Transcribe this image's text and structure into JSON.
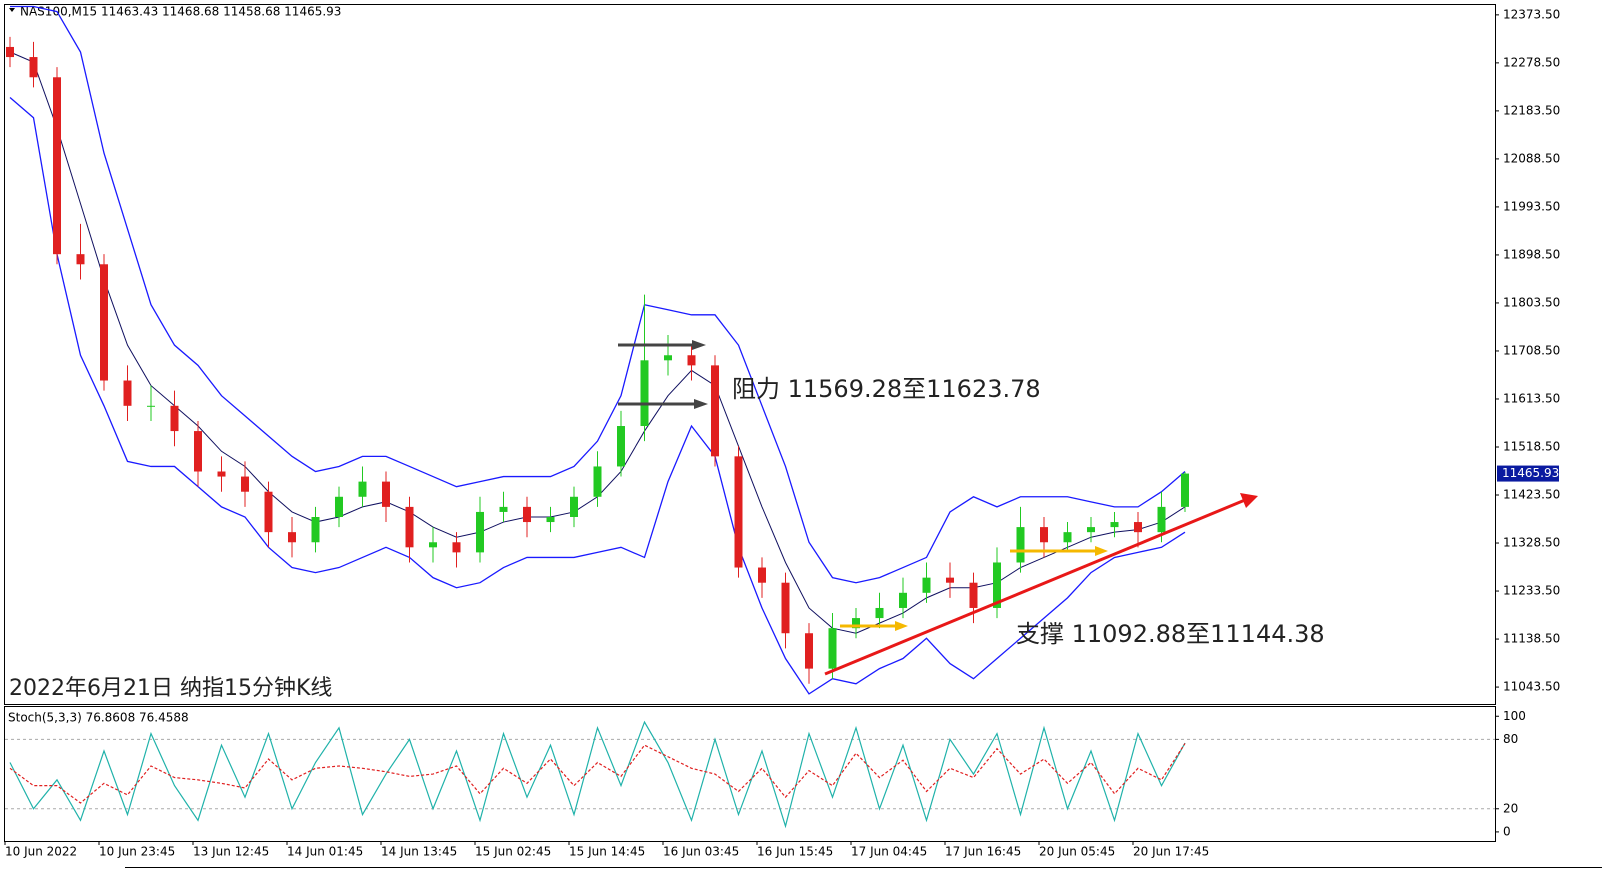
{
  "chart_data": [
    {
      "type": "candlestick",
      "title": "NAS100,M15  11463.43 11468.68 11458.68 11465.93",
      "categories": [
        "10 Jun 2022",
        null,
        null,
        null,
        "10 Jun 23:45",
        null,
        null,
        null,
        "13 Jun 12:45",
        null,
        null,
        null,
        "14 Jun 01:45",
        null,
        null,
        null,
        "14 Jun 13:45",
        null,
        null,
        null,
        "15 Jun 02:45",
        null,
        null,
        null,
        "15 Jun 14:45",
        null,
        null,
        null,
        "16 Jun 03:45",
        null,
        null,
        null,
        "16 Jun 15:45",
        null,
        null,
        null,
        "17 Jun 04:45",
        null,
        null,
        null,
        "17 Jun 16:45",
        null,
        null,
        null,
        "20 Jun 05:45",
        null,
        null,
        null,
        "20 Jun 17:45",
        null,
        null
      ],
      "open": [
        12310,
        12290,
        12250,
        11900,
        11880,
        11650,
        11600,
        11600,
        11550,
        11470,
        11460,
        11430,
        11350,
        11330,
        11380,
        11420,
        11450,
        11400,
        11320,
        11330,
        11310,
        11390,
        11400,
        11370,
        11380,
        11420,
        11480,
        11560,
        11690,
        11700,
        11680,
        11500,
        11280,
        11250,
        11150,
        11080,
        11160,
        11180,
        11200,
        11230,
        11260,
        11250,
        11200,
        11290,
        11360,
        11330,
        11350,
        11360,
        11370,
        11350,
        11400
      ],
      "high": [
        12330,
        12320,
        12270,
        11960,
        11900,
        11680,
        11640,
        11630,
        11570,
        11500,
        11490,
        11450,
        11380,
        11400,
        11440,
        11480,
        11470,
        11420,
        11360,
        11350,
        11420,
        11430,
        11420,
        11400,
        11440,
        11510,
        11590,
        11820,
        11740,
        11720,
        11700,
        11520,
        11300,
        11270,
        11170,
        11190,
        11200,
        11230,
        11260,
        11290,
        11290,
        11270,
        11320,
        11400,
        11380,
        11370,
        11380,
        11390,
        11390,
        11430,
        11469
      ],
      "low": [
        12270,
        12230,
        11880,
        11850,
        11630,
        11570,
        11570,
        11520,
        11440,
        11430,
        11400,
        11320,
        11300,
        11310,
        11360,
        11400,
        11370,
        11290,
        11290,
        11280,
        11290,
        11370,
        11340,
        11350,
        11360,
        11400,
        11460,
        11530,
        11660,
        11650,
        11480,
        11260,
        11220,
        11120,
        11050,
        11060,
        11140,
        11160,
        11180,
        11210,
        11220,
        11170,
        11180,
        11270,
        11300,
        11310,
        11330,
        11340,
        11320,
        11330,
        11390
      ],
      "close": [
        12290,
        12250,
        11900,
        11880,
        11650,
        11600,
        11600,
        11550,
        11470,
        11460,
        11430,
        11350,
        11330,
        11380,
        11420,
        11450,
        11400,
        11320,
        11330,
        11310,
        11390,
        11400,
        11370,
        11380,
        11420,
        11480,
        11560,
        11690,
        11700,
        11680,
        11500,
        11280,
        11250,
        11150,
        11080,
        11160,
        11180,
        11200,
        11230,
        11260,
        11250,
        11200,
        11290,
        11360,
        11330,
        11350,
        11360,
        11370,
        11350,
        11400,
        11465.93
      ],
      "bands": {
        "upper": [
          12390,
          12390,
          12380,
          12300,
          12100,
          11950,
          11800,
          11720,
          11680,
          11620,
          11580,
          11540,
          11500,
          11470,
          11480,
          11500,
          11500,
          11480,
          11460,
          11440,
          11450,
          11460,
          11460,
          11460,
          11480,
          11530,
          11620,
          11800,
          11790,
          11780,
          11780,
          11720,
          11600,
          11480,
          11330,
          11260,
          11250,
          11260,
          11280,
          11300,
          11390,
          11420,
          11400,
          11420,
          11420,
          11420,
          11410,
          11400,
          11400,
          11430,
          11470
        ],
        "middle": [
          12300,
          12280,
          12150,
          12000,
          11850,
          11720,
          11640,
          11600,
          11560,
          11510,
          11480,
          11430,
          11390,
          11370,
          11380,
          11400,
          11410,
          11390,
          11360,
          11340,
          11350,
          11370,
          11380,
          11380,
          11390,
          11420,
          11470,
          11550,
          11620,
          11670,
          11640,
          11520,
          11400,
          11290,
          11200,
          11160,
          11150,
          11170,
          11190,
          11220,
          11240,
          11240,
          11250,
          11280,
          11300,
          11320,
          11340,
          11350,
          11355,
          11370,
          11400
        ],
        "lower": [
          12210,
          12170,
          11900,
          11700,
          11600,
          11490,
          11480,
          11480,
          11440,
          11400,
          11380,
          11320,
          11280,
          11270,
          11280,
          11300,
          11320,
          11300,
          11260,
          11240,
          11250,
          11280,
          11300,
          11300,
          11300,
          11310,
          11320,
          11300,
          11450,
          11560,
          11500,
          11320,
          11200,
          11100,
          11030,
          11060,
          11050,
          11080,
          11100,
          11140,
          11090,
          11060,
          11100,
          11140,
          11180,
          11220,
          11270,
          11300,
          11310,
          11320,
          11350
        ]
      },
      "up_color": "#22c922",
      "down_color": "#e02020",
      "band_color": "#1a1aff",
      "middle_color": "#101060",
      "ylim": [
        11010,
        12393
      ],
      "yticks": [
        {
          "value": 12373.5,
          "label": "12373.50"
        },
        {
          "value": 12278.5,
          "label": "12278.50"
        },
        {
          "value": 12183.5,
          "label": "12183.50"
        },
        {
          "value": 12088.5,
          "label": "12088.50"
        },
        {
          "value": 11993.5,
          "label": "11993.50"
        },
        {
          "value": 11898.5,
          "label": "11898.50"
        },
        {
          "value": 11803.5,
          "label": "11803.50"
        },
        {
          "value": 11708.5,
          "label": "11708.50"
        },
        {
          "value": 11613.5,
          "label": "11613.50"
        },
        {
          "value": 11518.5,
          "label": "11518.50"
        },
        {
          "value": 11423.5,
          "label": "11423.50"
        },
        {
          "value": 11328.5,
          "label": "11328.50"
        },
        {
          "value": 11233.5,
          "label": "11233.50"
        },
        {
          "value": 11138.5,
          "label": "11138.50"
        },
        {
          "value": 11043.5,
          "label": "11043.50"
        }
      ],
      "price_label": {
        "value": 11465.93,
        "label": "11465.93"
      },
      "annotations": {
        "resistance": "阻力 11569.28至11623.78",
        "support": "支撑 11092.88至11144.38",
        "caption": "2022年6月21日 纳指15分钟K线"
      }
    },
    {
      "type": "line",
      "title": "Stoch(5,3,3) 76.8608 76.4588",
      "series": [
        {
          "color": "#20b2aa",
          "values": [
            60,
            20,
            45,
            10,
            70,
            15,
            85,
            40,
            10,
            75,
            30,
            85,
            20,
            60,
            90,
            15,
            50,
            80,
            20,
            70,
            10,
            85,
            30,
            75,
            15,
            90,
            40,
            95,
            60,
            10,
            80,
            15,
            70,
            5,
            85,
            30,
            90,
            20,
            75,
            10,
            80,
            50,
            85,
            15,
            90,
            20,
            70,
            10,
            85,
            40,
            76.8608
          ]
        },
        {
          "color": "#e02020",
          "values": [
            55,
            40,
            40,
            25,
            42,
            32,
            57,
            47,
            45,
            42,
            38,
            63,
            45,
            55,
            57,
            55,
            52,
            48,
            50,
            57,
            33,
            55,
            42,
            63,
            40,
            60,
            48,
            75,
            65,
            55,
            50,
            35,
            55,
            30,
            53,
            40,
            68,
            47,
            62,
            35,
            55,
            47,
            72,
            50,
            63,
            42,
            60,
            33,
            55,
            45,
            76.4588
          ]
        }
      ],
      "ylim": [
        -7,
        108
      ],
      "yticks": [
        100,
        80,
        20,
        0
      ]
    }
  ]
}
